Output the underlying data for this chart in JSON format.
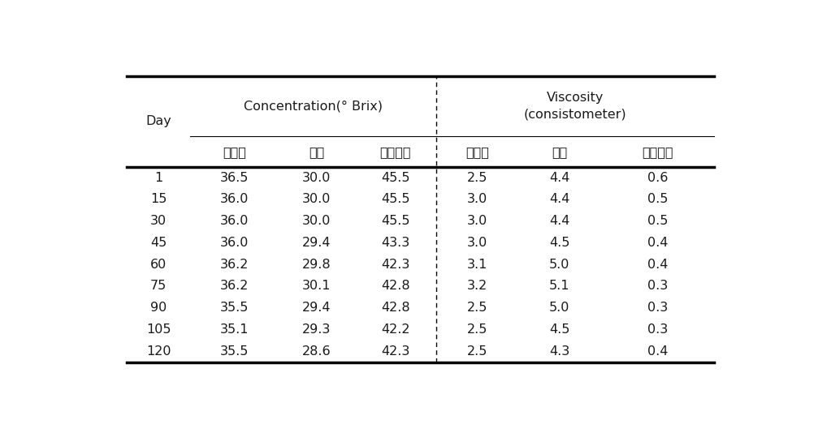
{
  "days": [
    "1",
    "15",
    "30",
    "45",
    "60",
    "75",
    "90",
    "105",
    "120"
  ],
  "conc_hongchu": [
    "36.5",
    "36.0",
    "36.0",
    "36.0",
    "36.2",
    "36.2",
    "35.5",
    "35.1",
    "35.5"
  ],
  "conc_ganjang": [
    "30.0",
    "30.0",
    "30.0",
    "29.4",
    "29.8",
    "30.1",
    "29.4",
    "29.3",
    "28.6"
  ],
  "conc_mustard": [
    "45.5",
    "45.5",
    "45.5",
    "43.3",
    "42.3",
    "42.8",
    "42.8",
    "42.2",
    "42.3"
  ],
  "visc_hongchu": [
    "2.5",
    "3.0",
    "3.0",
    "3.0",
    "3.1",
    "3.2",
    "2.5",
    "2.5",
    "2.5"
  ],
  "visc_ganjang": [
    "4.4",
    "4.4",
    "4.4",
    "4.5",
    "5.0",
    "5.1",
    "5.0",
    "4.5",
    "4.3"
  ],
  "visc_mustard": [
    "0.6",
    "0.5",
    "0.5",
    "0.4",
    "0.4",
    "0.3",
    "0.3",
    "0.3",
    "0.4"
  ],
  "header_row1_col1": "Day",
  "header_row1_col2": "Concentration(° Brix)",
  "header_row1_col3_line1": "Viscosity",
  "header_row1_col3_line2": "(consistometer)",
  "header_row2_conc1": "홍고추",
  "header_row2_conc2": "간장",
  "header_row2_conc3": "머스타드",
  "header_row2_visc1": "홍고추",
  "header_row2_visc2": "간장",
  "header_row2_visc3": "머스타드",
  "bg_color": "#ffffff",
  "text_color": "#1a1a1a",
  "line_color": "#000000",
  "font_size": 11.5,
  "header_font_size": 11.5
}
